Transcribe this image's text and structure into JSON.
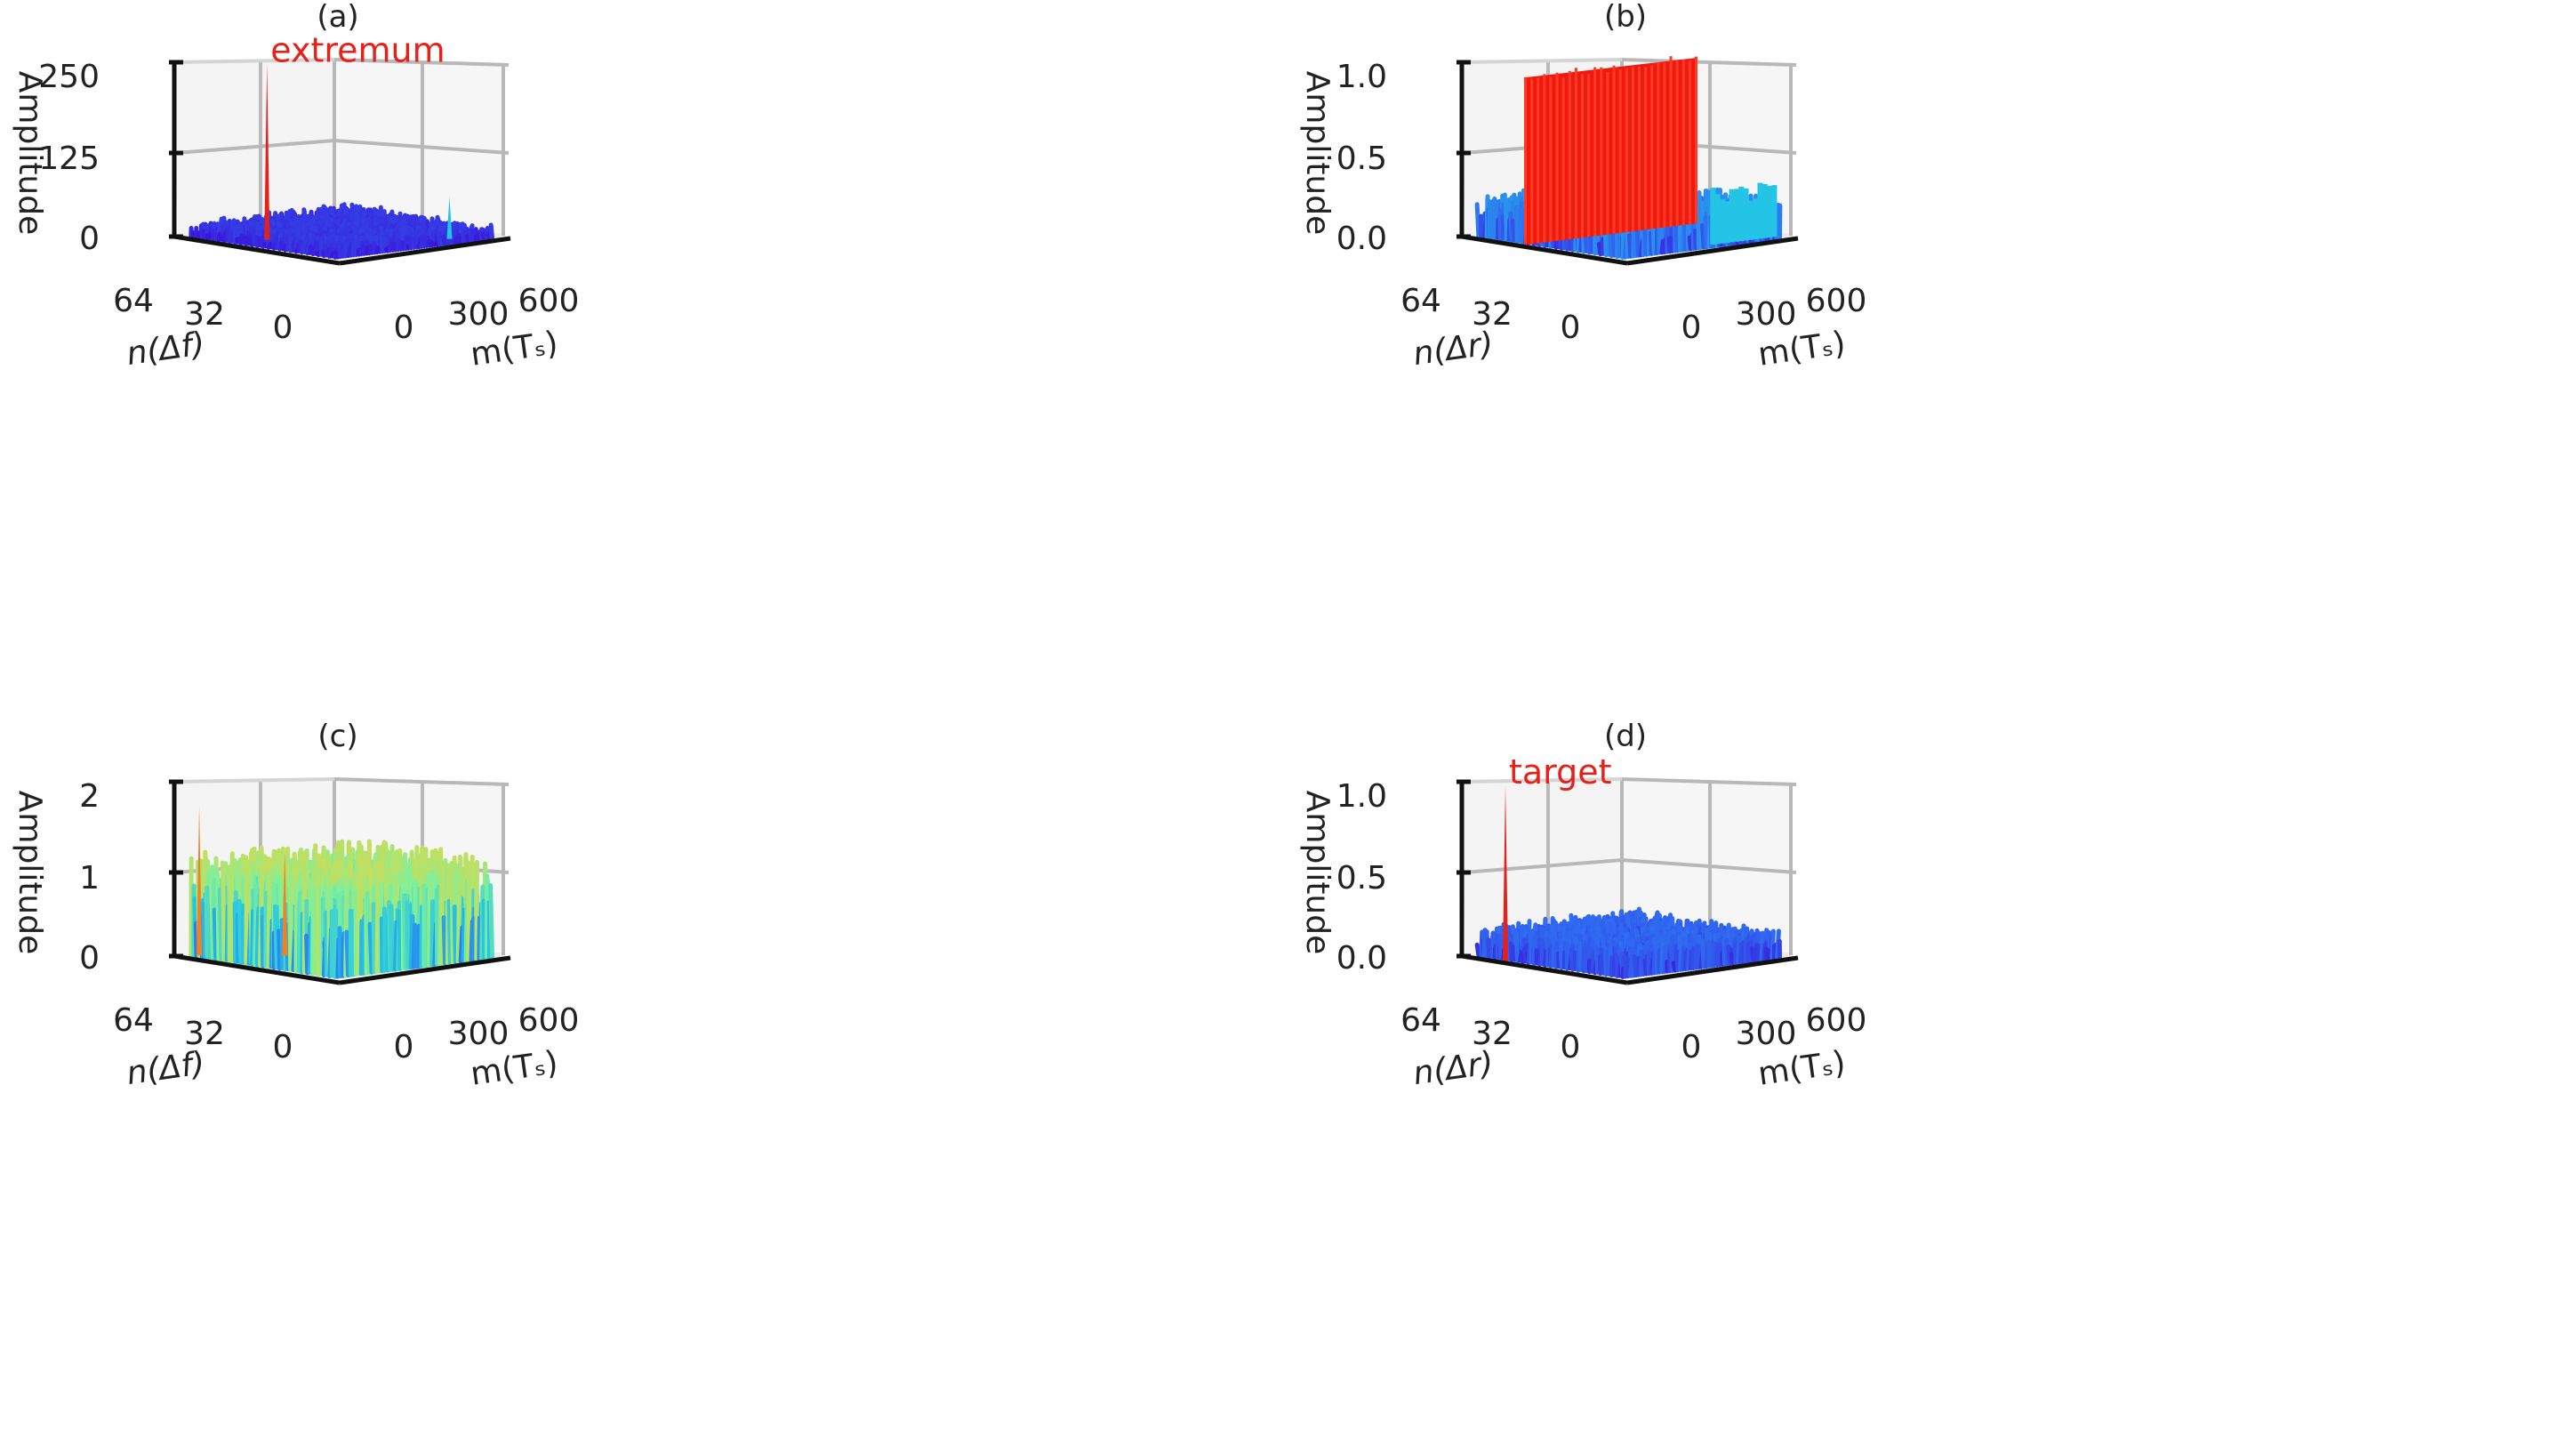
{
  "figure": {
    "colormap": [
      "#3a0fd8",
      "#2f6df2",
      "#23c4e6",
      "#7ef09c",
      "#f3d232",
      "#f4811e",
      "#e8201a"
    ]
  },
  "chart_data": [
    {
      "type": "surface3d",
      "title": "(a)",
      "zlabel": "Amplitude",
      "xlabel": "m(Tₛ)",
      "ylabel": "n(Δf)",
      "xticks": [
        "0",
        "300",
        "600"
      ],
      "yticks": [
        "0",
        "32",
        "64"
      ],
      "zticks": [
        "0",
        "125",
        "250"
      ],
      "xlim": [
        0,
        600
      ],
      "ylim": [
        0,
        64
      ],
      "zlim": [
        0,
        250
      ],
      "annotation": "extremum",
      "surface": {
        "noise_max": 18,
        "floor": 2
      },
      "peaks": [
        {
          "m": 120,
          "n": 42,
          "amplitude": 250,
          "color": "#e8201a"
        },
        {
          "m": 480,
          "n": 10,
          "amplitude": 60,
          "color": "#23c4e6"
        }
      ]
    },
    {
      "type": "surface3d",
      "title": "(b)",
      "zlabel": "Amplitude",
      "xlabel": "m(Tₛ)",
      "ylabel": "n(Δr)",
      "xticks": [
        "0",
        "300",
        "600"
      ],
      "yticks": [
        "0",
        "32",
        "64"
      ],
      "zticks": [
        "0.0",
        "0.5",
        "1.0"
      ],
      "xlim": [
        0,
        600
      ],
      "ylim": [
        0,
        64
      ],
      "zlim": [
        0,
        1.0
      ],
      "surface": {
        "noise_max": 0.18,
        "floor": 0.05
      },
      "ridge": {
        "n": 40,
        "m_start": 0,
        "m_end": 600,
        "amplitude": 1.0,
        "color": "#f0190f"
      },
      "cyan_band": {
        "m_start": 360,
        "m_end": 600,
        "n": 6,
        "amplitude": 0.3,
        "color": "#23c4e6"
      }
    },
    {
      "type": "surface3d",
      "title": "(c)",
      "zlabel": "Amplitude",
      "xlabel": "m(Tₛ)",
      "ylabel": "n(Δf)",
      "xticks": [
        "0",
        "300",
        "600"
      ],
      "yticks": [
        "0",
        "32",
        "64"
      ],
      "zticks": [
        "0",
        "1",
        "2"
      ],
      "xlim": [
        0,
        600
      ],
      "ylim": [
        0,
        64
      ],
      "zlim": [
        0,
        2
      ],
      "surface": {
        "noise_max": 0.8,
        "floor": 0.35
      },
      "peaks": [
        {
          "m": 40,
          "n": 60,
          "amplitude": 1.7,
          "color": "#f4811e"
        },
        {
          "m": 200,
          "n": 44,
          "amplitude": 1.2,
          "color": "#f4811e"
        }
      ]
    },
    {
      "type": "surface3d",
      "title": "(d)",
      "zlabel": "Amplitude",
      "xlabel": "m(Tₛ)",
      "ylabel": "n(Δr)",
      "xticks": [
        "0",
        "300",
        "600"
      ],
      "yticks": [
        "0",
        "32",
        "64"
      ],
      "zticks": [
        "0.0",
        "0.5",
        "1.0"
      ],
      "xlim": [
        0,
        600
      ],
      "ylim": [
        0,
        64
      ],
      "zlim": [
        0,
        1.0
      ],
      "annotation": "target",
      "surface": {
        "noise_max": 0.12,
        "floor": 0.04
      },
      "peaks": [
        {
          "m": 0,
          "n": 48,
          "amplitude": 1.0,
          "color": "#e8201a"
        }
      ]
    }
  ]
}
